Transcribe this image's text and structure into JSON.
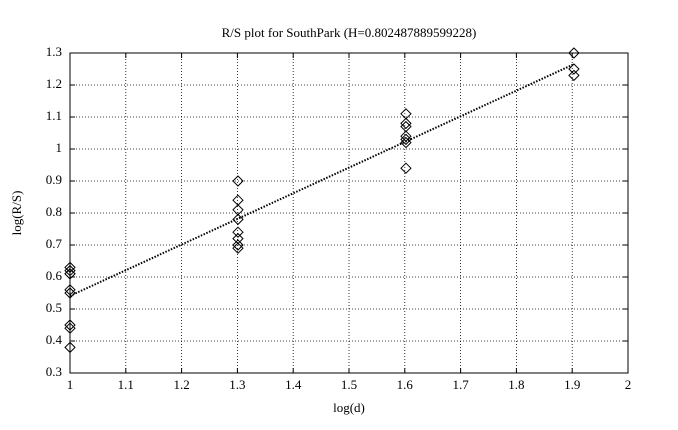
{
  "chart_data": {
    "type": "scatter",
    "title": "R/S plot for SouthPark (H=0.802487889599228)",
    "x_label": "log(d)",
    "y_label": "log(R/S)",
    "series": [
      {
        "color": "#000000",
        "marker": "diamond",
        "x": [
          1,
          1,
          1,
          1,
          1,
          1,
          1,
          1,
          1,
          1.30103,
          1.30103,
          1.30103,
          1.30103,
          1.30103,
          1.30103,
          1.30103,
          1.30103,
          1.60206,
          1.60206,
          1.60206,
          1.60206,
          1.60206,
          1.60206,
          1.60206,
          1.90309,
          1.90309,
          1.90309
        ],
        "values": [
          0.63,
          0.62,
          0.61,
          0.61,
          0.56,
          0.55,
          0.45,
          0.44,
          0.38,
          0.9,
          0.84,
          0.81,
          0.78,
          0.74,
          0.72,
          0.7,
          0.69,
          1.11,
          1.08,
          1.07,
          1.04,
          1.03,
          1.02,
          0.94,
          1.3,
          1.25,
          1.23
        ]
      }
    ],
    "fit": {
      "color": "#000000",
      "x": [
        1,
        1.90309
      ],
      "values": [
        0.541,
        1.265
      ]
    },
    "xlim": [
      1,
      2
    ],
    "xticks": [
      1,
      1.1,
      1.2,
      1.3,
      1.4,
      1.5,
      1.6,
      1.7,
      1.8,
      1.9,
      2
    ],
    "ylim": [
      0.3,
      1.3
    ],
    "yticks": [
      0.3,
      0.4,
      0.5,
      0.6,
      0.7,
      0.8,
      0.9,
      1,
      1.1,
      1.2,
      1.3
    ],
    "grid": true
  }
}
